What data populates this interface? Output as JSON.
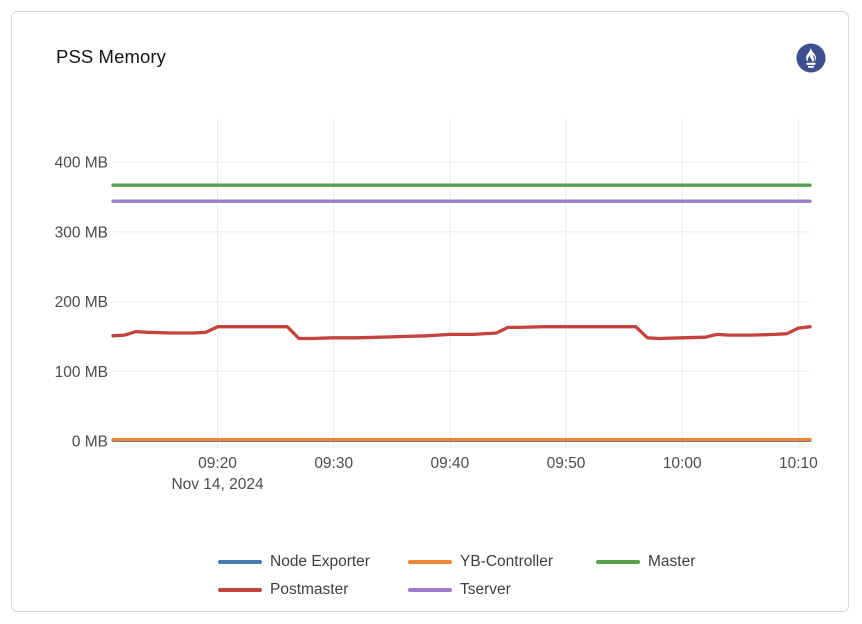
{
  "panel": {
    "title": "PSS Memory"
  },
  "icons": {
    "logo": "prometheus-icon",
    "logo_circle_color": "#3d4e91"
  },
  "colors": {
    "card_border": "#d9d9d9",
    "grid": "#ececec",
    "axis_text": "#4c4c4c",
    "legend_text": "#3f3f3f"
  },
  "chart_data": {
    "type": "line",
    "title": "PSS Memory",
    "xlabel": "",
    "ylabel": "",
    "y_unit": "MB",
    "ylim": [
      0,
      462
    ],
    "grid": true,
    "legend_position": "bottom",
    "x_date_label": "Nov 14, 2024",
    "x_range": [
      "09:11",
      "10:11"
    ],
    "x_ticks": [
      "09:20",
      "09:30",
      "09:40",
      "09:50",
      "10:00",
      "10:10"
    ],
    "y_ticks": [
      "0 MB",
      "100 MB",
      "200 MB",
      "300 MB",
      "400 MB"
    ],
    "series": [
      {
        "name": "Node Exporter",
        "color": "#4879b2",
        "points": [
          [
            "09:11",
            1
          ],
          [
            "10:11",
            1
          ]
        ]
      },
      {
        "name": "YB-Controller",
        "color": "#ef8633",
        "points": [
          [
            "09:11",
            2
          ],
          [
            "10:11",
            2
          ]
        ]
      },
      {
        "name": "Master",
        "color": "#57a14e",
        "points": [
          [
            "09:11",
            367
          ],
          [
            "10:11",
            367
          ]
        ]
      },
      {
        "name": "Postmaster",
        "color": "#c5433e",
        "points": [
          [
            "09:11",
            151
          ],
          [
            "09:12",
            152
          ],
          [
            "09:13",
            157
          ],
          [
            "09:14",
            156
          ],
          [
            "09:16",
            155
          ],
          [
            "09:18",
            155
          ],
          [
            "09:19",
            156
          ],
          [
            "09:20",
            164
          ],
          [
            "09:22",
            164
          ],
          [
            "09:24",
            164
          ],
          [
            "09:26",
            164
          ],
          [
            "09:27",
            147
          ],
          [
            "09:28",
            147
          ],
          [
            "09:30",
            148
          ],
          [
            "09:32",
            148
          ],
          [
            "09:34",
            149
          ],
          [
            "09:36",
            150
          ],
          [
            "09:38",
            151
          ],
          [
            "09:40",
            153
          ],
          [
            "09:42",
            153
          ],
          [
            "09:44",
            155
          ],
          [
            "09:45",
            163
          ],
          [
            "09:46",
            163
          ],
          [
            "09:48",
            164
          ],
          [
            "09:50",
            164
          ],
          [
            "09:52",
            164
          ],
          [
            "09:54",
            164
          ],
          [
            "09:56",
            164
          ],
          [
            "09:57",
            148
          ],
          [
            "09:58",
            147
          ],
          [
            "10:00",
            148
          ],
          [
            "10:02",
            149
          ],
          [
            "10:03",
            153
          ],
          [
            "10:04",
            152
          ],
          [
            "10:06",
            152
          ],
          [
            "10:08",
            153
          ],
          [
            "10:09",
            154
          ],
          [
            "10:10",
            162
          ],
          [
            "10:11",
            164
          ]
        ]
      },
      {
        "name": "Tserver",
        "color": "#9c7bca",
        "points": [
          [
            "09:11",
            344
          ],
          [
            "10:11",
            344
          ]
        ]
      }
    ]
  }
}
